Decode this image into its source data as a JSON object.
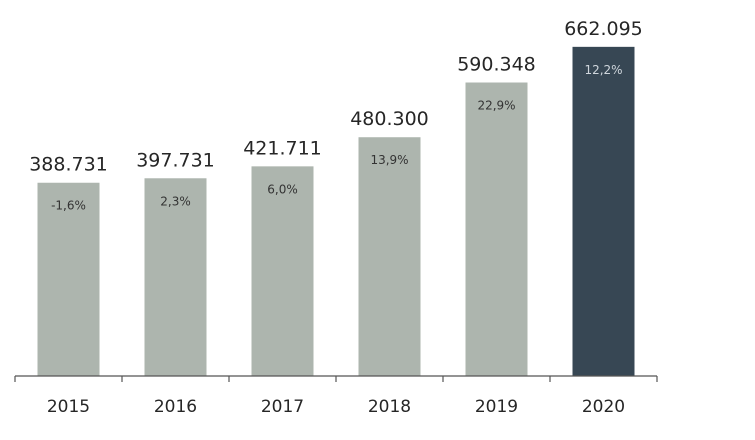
{
  "chart_data": {
    "type": "bar",
    "title": "",
    "xlabel": "",
    "ylabel": "",
    "categories": [
      "2015",
      "2016",
      "2017",
      "2018",
      "2019",
      "2020"
    ],
    "values": [
      388731,
      397731,
      421711,
      480300,
      590348,
      662095
    ],
    "value_labels": [
      "388.731",
      "397.731",
      "421.711",
      "480.300",
      "590.348",
      "662.095"
    ],
    "growth_labels": [
      "-1,6%",
      "2,3%",
      "6,0%",
      "13,9%",
      "22,9%",
      "12,2%"
    ],
    "highlight_category": "2020",
    "ylim": [
      0,
      700000
    ],
    "grid": false,
    "legend": "none",
    "colors": {
      "bar": "#adb5ae",
      "highlight": "#374754",
      "axis": "#555555",
      "growth_text": "#333333",
      "highlight_text": "#cfd6dc",
      "value_text": "#262626"
    }
  }
}
